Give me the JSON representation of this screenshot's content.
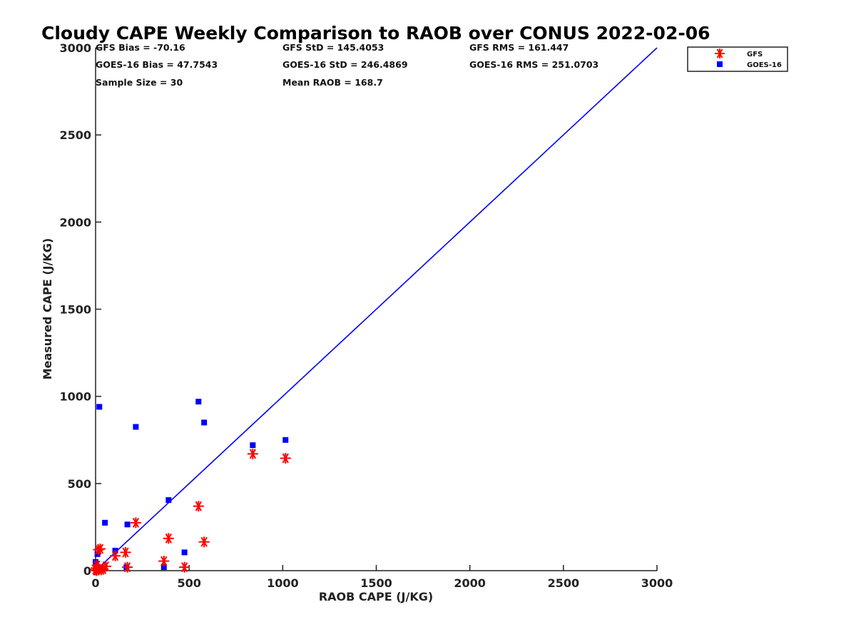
{
  "chart_data": {
    "type": "scatter",
    "title": "Cloudy CAPE Weekly Comparison to RAOB over CONUS 2022-02-06",
    "xlabel": "RAOB CAPE (J/KG)",
    "ylabel": "Measured CAPE (J/KG)",
    "xlim": [
      0,
      3000
    ],
    "ylim": [
      0,
      3000
    ],
    "xticks": [
      "0",
      "500",
      "1000",
      "1500",
      "2000",
      "2500",
      "3000"
    ],
    "yticks": [
      "0",
      "500",
      "1000",
      "1500",
      "2000",
      "2500",
      "3000"
    ],
    "grid": false,
    "legend_position": "top-right",
    "reference_line": {
      "x": [
        0,
        3000
      ],
      "y": [
        0,
        3000
      ],
      "color": "#0000ff"
    },
    "stats": [
      "GFS Bias = -70.16",
      "GFS StD = 145.4053",
      "GFS RMS = 161.447",
      "GOES-16 Bias = 47.7543",
      "GOES-16 StD = 246.4869",
      "GOES-16 RMS = 251.0703",
      "Sample Size = 30",
      "Mean RAOB = 168.7"
    ],
    "series": [
      {
        "name": "GFS",
        "marker": "asterisk",
        "color": "#ff0000",
        "points": [
          [
            0,
            5
          ],
          [
            3,
            15
          ],
          [
            5,
            0
          ],
          [
            8,
            30
          ],
          [
            12,
            10
          ],
          [
            15,
            120
          ],
          [
            25,
            125
          ],
          [
            30,
            5
          ],
          [
            40,
            8
          ],
          [
            55,
            25
          ],
          [
            105,
            85
          ],
          [
            160,
            105
          ],
          [
            170,
            20
          ],
          [
            215,
            275
          ],
          [
            365,
            55
          ],
          [
            390,
            185
          ],
          [
            475,
            20
          ],
          [
            550,
            370
          ],
          [
            580,
            165
          ],
          [
            840,
            670
          ],
          [
            1015,
            645
          ]
        ]
      },
      {
        "name": "GOES-16",
        "marker": "square",
        "color": "#0000ff",
        "points": [
          [
            0,
            50
          ],
          [
            2,
            30
          ],
          [
            4,
            10
          ],
          [
            5,
            0
          ],
          [
            8,
            20
          ],
          [
            10,
            95
          ],
          [
            12,
            5
          ],
          [
            20,
            940
          ],
          [
            50,
            275
          ],
          [
            105,
            115
          ],
          [
            165,
            20
          ],
          [
            170,
            265
          ],
          [
            215,
            825
          ],
          [
            365,
            20
          ],
          [
            390,
            405
          ],
          [
            475,
            105
          ],
          [
            550,
            970
          ],
          [
            580,
            850
          ],
          [
            840,
            720
          ],
          [
            1015,
            750
          ]
        ]
      }
    ]
  }
}
